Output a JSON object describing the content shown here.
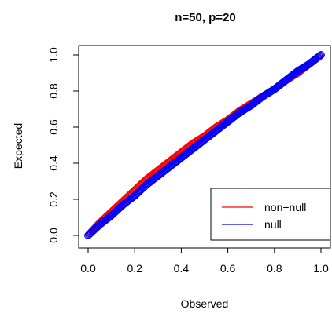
{
  "chart_data": {
    "type": "scatter",
    "title": "n=50, p=20",
    "xlabel": "Observed",
    "ylabel": "Expected",
    "xlim": [
      0,
      1
    ],
    "ylim": [
      0,
      1
    ],
    "xticks": [
      "0.0",
      "0.2",
      "0.4",
      "0.6",
      "0.8",
      "1.0"
    ],
    "yticks": [
      "0.0",
      "0.2",
      "0.4",
      "0.6",
      "0.8",
      "1.0"
    ],
    "grid": false,
    "legend_position": "bottom-right",
    "series": [
      {
        "name": "non−null",
        "color": "#ff0000",
        "x": [
          0.0,
          0.05,
          0.1,
          0.15,
          0.2,
          0.25,
          0.3,
          0.35,
          0.4,
          0.45,
          0.5,
          0.55,
          0.6,
          0.65,
          0.7,
          0.75,
          0.8,
          0.85,
          0.9,
          0.95,
          1.0
        ],
        "y": [
          0.0,
          0.07,
          0.13,
          0.19,
          0.25,
          0.31,
          0.36,
          0.41,
          0.46,
          0.51,
          0.55,
          0.6,
          0.64,
          0.69,
          0.73,
          0.77,
          0.81,
          0.86,
          0.9,
          0.95,
          1.0
        ]
      },
      {
        "name": "null",
        "color": "#0000ff",
        "x": [
          0.0,
          0.05,
          0.1,
          0.15,
          0.2,
          0.25,
          0.3,
          0.35,
          0.4,
          0.45,
          0.5,
          0.55,
          0.6,
          0.65,
          0.7,
          0.75,
          0.8,
          0.85,
          0.9,
          0.95,
          1.0
        ],
        "y": [
          0.0,
          0.06,
          0.11,
          0.17,
          0.22,
          0.28,
          0.33,
          0.38,
          0.43,
          0.48,
          0.53,
          0.58,
          0.63,
          0.68,
          0.72,
          0.77,
          0.81,
          0.86,
          0.91,
          0.95,
          1.0
        ]
      }
    ]
  }
}
